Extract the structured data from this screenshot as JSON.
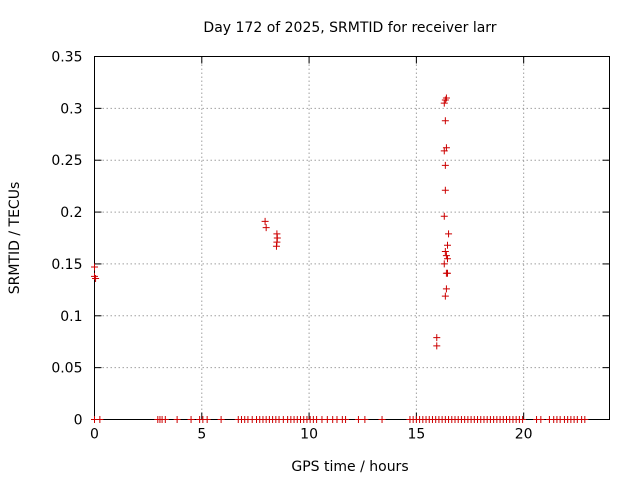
{
  "chart_data": {
    "type": "scatter",
    "title": "Day 172 of 2025, SRMTID for receiver larr",
    "xlabel": "GPS time / hours",
    "ylabel": "SRMTID / TECUs",
    "xlim": [
      0,
      24
    ],
    "ylim": [
      0,
      0.35
    ],
    "grid": true,
    "marker": "+",
    "color": "#cc0000",
    "x_ticks": [
      "0",
      "5",
      "10",
      "15",
      "20"
    ],
    "x_tick_values": [
      0,
      5,
      10,
      15,
      20
    ],
    "y_ticks": [
      "0",
      "0.05",
      "0.1",
      "0.15",
      "0.2",
      "0.25",
      "0.3",
      "0.35"
    ],
    "y_tick_values": [
      0,
      0.05,
      0.1,
      0.15,
      0.2,
      0.25,
      0.3,
      0.35
    ],
    "series": [
      {
        "points": [
          [
            0.0,
            0.147
          ],
          [
            0.0,
            0.138
          ],
          [
            0.05,
            0.136
          ],
          [
            7.95,
            0.191
          ],
          [
            8.0,
            0.185
          ],
          [
            8.5,
            0.179
          ],
          [
            8.52,
            0.175
          ],
          [
            8.5,
            0.171
          ],
          [
            8.48,
            0.167
          ],
          [
            15.95,
            0.079
          ],
          [
            15.95,
            0.071
          ],
          [
            16.3,
            0.305
          ],
          [
            16.35,
            0.308
          ],
          [
            16.4,
            0.31
          ],
          [
            16.35,
            0.288
          ],
          [
            16.4,
            0.262
          ],
          [
            16.3,
            0.259
          ],
          [
            16.35,
            0.245
          ],
          [
            16.35,
            0.221
          ],
          [
            16.3,
            0.196
          ],
          [
            16.5,
            0.179
          ],
          [
            16.45,
            0.168
          ],
          [
            16.35,
            0.162
          ],
          [
            16.4,
            0.158
          ],
          [
            16.45,
            0.155
          ],
          [
            16.3,
            0.15
          ],
          [
            16.4,
            0.141
          ],
          [
            16.45,
            0.141
          ],
          [
            16.4,
            0.126
          ],
          [
            16.35,
            0.119
          ],
          [
            0.0,
            0.0
          ],
          [
            0.25,
            0.0
          ],
          [
            2.95,
            0.0
          ],
          [
            3.05,
            0.0
          ],
          [
            3.15,
            0.0
          ],
          [
            3.3,
            0.0
          ],
          [
            3.85,
            0.0
          ],
          [
            4.5,
            0.0
          ],
          [
            4.9,
            0.0
          ],
          [
            5.05,
            0.0
          ],
          [
            5.25,
            0.0
          ],
          [
            5.9,
            0.0
          ],
          [
            6.7,
            0.0
          ],
          [
            6.85,
            0.0
          ],
          [
            7.0,
            0.0
          ],
          [
            7.15,
            0.0
          ],
          [
            7.35,
            0.0
          ],
          [
            7.55,
            0.0
          ],
          [
            7.7,
            0.0
          ],
          [
            7.85,
            0.0
          ],
          [
            8.0,
            0.0
          ],
          [
            8.15,
            0.0
          ],
          [
            8.3,
            0.0
          ],
          [
            8.45,
            0.0
          ],
          [
            8.6,
            0.0
          ],
          [
            8.8,
            0.0
          ],
          [
            9.0,
            0.0
          ],
          [
            9.15,
            0.0
          ],
          [
            9.3,
            0.0
          ],
          [
            9.45,
            0.0
          ],
          [
            9.6,
            0.0
          ],
          [
            9.75,
            0.0
          ],
          [
            9.9,
            0.0
          ],
          [
            10.05,
            0.0
          ],
          [
            10.2,
            0.0
          ],
          [
            10.35,
            0.0
          ],
          [
            10.6,
            0.0
          ],
          [
            10.85,
            0.0
          ],
          [
            11.1,
            0.0
          ],
          [
            11.3,
            0.0
          ],
          [
            11.55,
            0.0
          ],
          [
            11.7,
            0.0
          ],
          [
            12.3,
            0.0
          ],
          [
            12.6,
            0.0
          ],
          [
            13.4,
            0.0
          ],
          [
            14.7,
            0.0
          ],
          [
            14.85,
            0.0
          ],
          [
            15.0,
            0.0
          ],
          [
            15.15,
            0.0
          ],
          [
            15.3,
            0.0
          ],
          [
            15.45,
            0.0
          ],
          [
            15.6,
            0.0
          ],
          [
            15.75,
            0.0
          ],
          [
            15.9,
            0.0
          ],
          [
            16.05,
            0.0
          ],
          [
            16.2,
            0.0
          ],
          [
            16.35,
            0.0
          ],
          [
            16.5,
            0.0
          ],
          [
            16.65,
            0.0
          ],
          [
            16.8,
            0.0
          ],
          [
            16.95,
            0.0
          ],
          [
            17.1,
            0.0
          ],
          [
            17.25,
            0.0
          ],
          [
            17.4,
            0.0
          ],
          [
            17.55,
            0.0
          ],
          [
            17.7,
            0.0
          ],
          [
            17.85,
            0.0
          ],
          [
            18.0,
            0.0
          ],
          [
            18.15,
            0.0
          ],
          [
            18.3,
            0.0
          ],
          [
            18.45,
            0.0
          ],
          [
            18.6,
            0.0
          ],
          [
            18.75,
            0.0
          ],
          [
            18.9,
            0.0
          ],
          [
            19.05,
            0.0
          ],
          [
            19.2,
            0.0
          ],
          [
            19.35,
            0.0
          ],
          [
            19.5,
            0.0
          ],
          [
            19.65,
            0.0
          ],
          [
            19.8,
            0.0
          ],
          [
            19.95,
            0.0
          ],
          [
            20.6,
            0.0
          ],
          [
            20.8,
            0.0
          ],
          [
            21.2,
            0.0
          ],
          [
            21.4,
            0.0
          ],
          [
            21.55,
            0.0
          ],
          [
            21.7,
            0.0
          ],
          [
            21.9,
            0.0
          ],
          [
            22.05,
            0.0
          ],
          [
            22.2,
            0.0
          ],
          [
            22.35,
            0.0
          ],
          [
            22.5,
            0.0
          ],
          [
            22.7,
            0.0
          ],
          [
            22.85,
            0.0
          ]
        ]
      }
    ]
  }
}
